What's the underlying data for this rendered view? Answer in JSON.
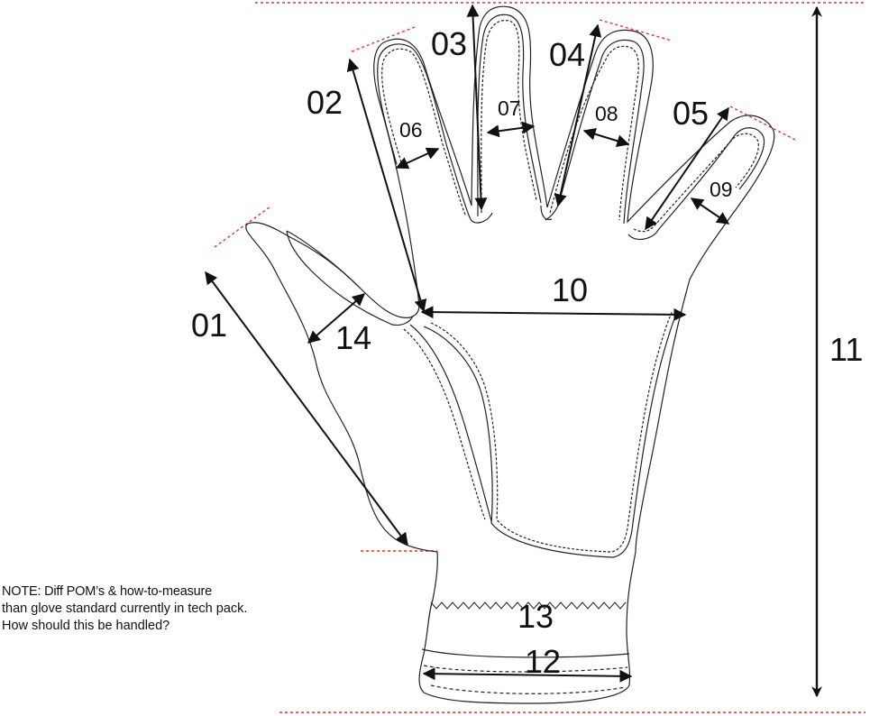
{
  "labels": {
    "p01": "01",
    "p02": "02",
    "p03": "03",
    "p04": "04",
    "p05": "05",
    "p06": "06",
    "p07": "07",
    "p08": "08",
    "p09": "09",
    "p10": "10",
    "p11": "11",
    "p12": "12",
    "p13": "13",
    "p14": "14"
  },
  "note": {
    "title": "NOTE: Diff POM’s & how-to-measure",
    "line1": "than glove standard currently in tech pack.",
    "line2": "How should this be handled?"
  },
  "colors": {
    "outline": "#222222",
    "reference_line": "#e0342f"
  }
}
